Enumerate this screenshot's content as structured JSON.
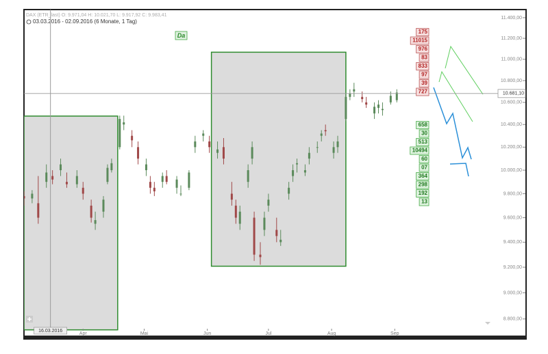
{
  "chart_data": {
    "type": "candlestick",
    "title": "DAX (ETR_last)  O: 9.971,04  H: 10.021,70  L: 9.917,92  C: 9.983,41",
    "subtitle": "03.03.2016 - 02.09.2016 (6 Monate, 1 Tag)",
    "marker_label": "Da",
    "log_scale": true,
    "up_color": "#5b8a5b",
    "down_color": "#a04848",
    "x": [
      "2016-03-03",
      "2016-03-07",
      "2016-03-10",
      "2016-03-14",
      "2016-03-17",
      "2016-03-21",
      "2016-03-24",
      "2016-03-29",
      "2016-04-01",
      "2016-04-05",
      "2016-04-07",
      "2016-04-11",
      "2016-04-13",
      "2016-04-15",
      "2016-04-19",
      "2016-04-21",
      "2016-04-25",
      "2016-04-28",
      "2016-05-02",
      "2016-05-04",
      "2016-05-06",
      "2016-05-10",
      "2016-05-12",
      "2016-05-17",
      "2016-05-19",
      "2016-05-23",
      "2016-05-26",
      "2016-05-30",
      "2016-06-02",
      "2016-06-06",
      "2016-06-09",
      "2016-06-13",
      "2016-06-15",
      "2016-06-17",
      "2016-06-21",
      "2016-06-23",
      "2016-06-24",
      "2016-06-27",
      "2016-06-29",
      "2016-07-01",
      "2016-07-05",
      "2016-07-07",
      "2016-07-11",
      "2016-07-13",
      "2016-07-15",
      "2016-07-19",
      "2016-07-21",
      "2016-07-25",
      "2016-07-27",
      "2016-07-29",
      "2016-08-02",
      "2016-08-04",
      "2016-08-08",
      "2016-08-10",
      "2016-08-12",
      "2016-08-16",
      "2016-08-18",
      "2016-08-22",
      "2016-08-24",
      "2016-08-26",
      "2016-08-30",
      "2016-09-02"
    ],
    "open": [
      9780,
      9760,
      9720,
      9900,
      9950,
      10000,
      9900,
      9880,
      9850,
      9700,
      9550,
      9650,
      9900,
      10000,
      10200,
      10400,
      10300,
      10200,
      10000,
      9900,
      9850,
      9900,
      9950,
      9850,
      9800,
      9850,
      10200,
      10300,
      10250,
      10150,
      10200,
      9800,
      9700,
      9550,
      9900,
      10100,
      9600,
      9300,
      9500,
      9700,
      9500,
      9400,
      9800,
      9950,
      10050,
      9980,
      10100,
      10200,
      10300,
      10350,
      10150,
      10200,
      10450,
      10650,
      10700,
      10650,
      10600,
      10500,
      10550,
      10530,
      10600,
      10620
    ],
    "high": [
      9820,
      9830,
      9950,
      10050,
      10000,
      10100,
      9980,
      10000,
      9900,
      9750,
      9650,
      9780,
      10050,
      10100,
      10480,
      10480,
      10350,
      10250,
      10100,
      9950,
      9900,
      9980,
      10000,
      9950,
      9870,
      10000,
      10300,
      10350,
      10300,
      10250,
      10280,
      9900,
      9750,
      9700,
      10050,
      10250,
      9650,
      9400,
      9650,
      9800,
      9600,
      9500,
      9900,
      10050,
      10100,
      10050,
      10200,
      10250,
      10350,
      10400,
      10250,
      10300,
      10680,
      10720,
      10780,
      10700,
      10650,
      10600,
      10620,
      10600,
      10700,
      10720
    ],
    "low": [
      9700,
      9720,
      9550,
      9850,
      9880,
      9950,
      9850,
      9850,
      9750,
      9560,
      9500,
      9600,
      9880,
      9980,
      10180,
      10350,
      10200,
      10050,
      9950,
      9800,
      9780,
      9850,
      9880,
      9800,
      9780,
      9830,
      10150,
      10250,
      10150,
      10100,
      10050,
      9700,
      9550,
      9500,
      9850,
      10050,
      9250,
      9220,
      9450,
      9650,
      9400,
      9370,
      9750,
      9900,
      9980,
      9950,
      10050,
      10150,
      10250,
      10300,
      10100,
      10150,
      10430,
      10620,
      10650,
      10600,
      10550,
      10450,
      10500,
      10480,
      10580,
      10600
    ],
    "close": [
      9760,
      9800,
      9600,
      9980,
      9920,
      10050,
      9880,
      9950,
      9800,
      9600,
      9580,
      9750,
      10020,
      10060,
      10450,
      10420,
      10260,
      10100,
      10050,
      9850,
      9820,
      9950,
      9900,
      9920,
      9800,
      9980,
      10250,
      10320,
      10200,
      10180,
      10100,
      9750,
      9600,
      9650,
      10000,
      10200,
      9300,
      9280,
      9600,
      9750,
      9450,
      9420,
      9850,
      10000,
      10060,
      10000,
      10150,
      10200,
      10320,
      10340,
      10200,
      10250,
      10650,
      10680,
      10720,
      10630,
      10580,
      10560,
      10580,
      10540,
      10660,
      10690
    ],
    "xlim": [
      "2016-03-03",
      "2016-10-21"
    ],
    "xticks": [
      {
        "value": "2016-04-01",
        "label": "Apr"
      },
      {
        "value": "2016-05-01",
        "label": "Mai"
      },
      {
        "value": "2016-06-01",
        "label": "Jun"
      },
      {
        "value": "2016-07-01",
        "label": "Jul"
      },
      {
        "value": "2016-08-01",
        "label": "Aug"
      },
      {
        "value": "2016-09-01",
        "label": "Sep"
      }
    ],
    "ylim": [
      8650,
      11480
    ],
    "yticks": [
      {
        "value": 8800,
        "label": "8.800,00"
      },
      {
        "value": 9000,
        "label": "9.000,00"
      },
      {
        "value": 9200,
        "label": "9.200,00"
      },
      {
        "value": 9400,
        "label": "9.400,00"
      },
      {
        "value": 9600,
        "label": "9.600,00"
      },
      {
        "value": 9800,
        "label": "9.800,00"
      },
      {
        "value": 10000,
        "label": "10.000,00"
      },
      {
        "value": 10200,
        "label": "10.200,00"
      },
      {
        "value": 10400,
        "label": "10.400,00"
      },
      {
        "value": 10600,
        "label": "10.600,00"
      },
      {
        "value": 10800,
        "label": "10.800,00"
      },
      {
        "value": 11000,
        "label": "11.000,00"
      },
      {
        "value": 11200,
        "label": "11.200,00"
      },
      {
        "value": 11400,
        "label": "11.400,00"
      }
    ],
    "reference_line": {
      "value": 10681.1,
      "label": "10.681,10"
    },
    "crosshair": {
      "x": "2016-03-16",
      "label": "16.03.2016"
    },
    "zones": [
      {
        "x": [
          "2016-03-03",
          "2016-04-18"
        ],
        "y": [
          8718,
          10476
        ],
        "color": "#2e8b2e"
      },
      {
        "x": [
          "2016-06-03",
          "2016-08-08"
        ],
        "y": [
          9208,
          11067
        ],
        "color": "#2e8b2e"
      }
    ],
    "red_labels": [
      "175",
      "11015",
      "976",
      "83",
      "833",
      "97",
      "39",
      "727"
    ],
    "green_labels": [
      "658",
      "30",
      "513",
      "10494",
      "60",
      "07",
      "364",
      "298",
      "192",
      "13"
    ]
  }
}
